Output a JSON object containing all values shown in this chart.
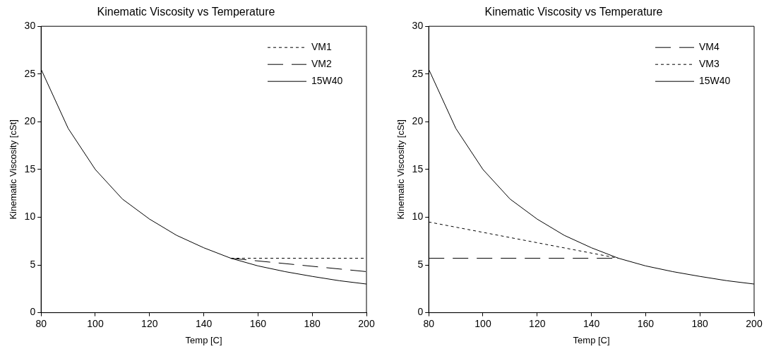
{
  "chart_data": [
    {
      "type": "line",
      "title": "Kinematic Viscosity vs Temperature",
      "xlabel": "Temp [C]",
      "ylabel": "Kinematic Viscosity [cSt]",
      "xlim": [
        80,
        200
      ],
      "xticks": [
        80,
        100,
        120,
        140,
        160,
        180,
        200
      ],
      "ylim": [
        0,
        30
      ],
      "yticks": [
        0,
        5,
        10,
        15,
        20,
        25,
        30
      ],
      "legend": "top right",
      "marker": "none",
      "series": [
        {
          "name": "VM1",
          "color": "#000000",
          "line_style": "dotted",
          "x": [
            150,
            200
          ],
          "values": [
            5.7,
            5.7
          ]
        },
        {
          "name": "VM2",
          "color": "#000000",
          "line_style": "dashed",
          "x": [
            150,
            200
          ],
          "values": [
            5.7,
            4.3
          ]
        },
        {
          "name": "15W40",
          "color": "#000000",
          "line_style": "solid",
          "x": [
            80,
            90,
            100,
            110,
            120,
            130,
            140,
            150,
            160,
            170,
            180,
            190,
            200
          ],
          "values": [
            25.5,
            19.3,
            15.0,
            11.9,
            9.8,
            8.1,
            6.8,
            5.7,
            4.9,
            4.3,
            3.8,
            3.35,
            3.0
          ]
        }
      ]
    },
    {
      "type": "line",
      "title": "Kinematic Viscosity vs Temperature",
      "xlabel": "Temp [C]",
      "ylabel": "Kinematic Viscosity [cSt]",
      "xlim": [
        80,
        200
      ],
      "xticks": [
        80,
        100,
        120,
        140,
        160,
        180,
        200
      ],
      "ylim": [
        0,
        30
      ],
      "yticks": [
        0,
        5,
        10,
        15,
        20,
        25,
        30
      ],
      "legend": "top right",
      "marker": "none",
      "series": [
        {
          "name": "VM4",
          "color": "#000000",
          "line_style": "dashed",
          "x": [
            80,
            150
          ],
          "values": [
            5.7,
            5.7
          ]
        },
        {
          "name": "VM3",
          "color": "#000000",
          "line_style": "dotted",
          "x": [
            80,
            150
          ],
          "values": [
            9.5,
            5.7
          ]
        },
        {
          "name": "15W40",
          "color": "#000000",
          "line_style": "solid",
          "x": [
            80,
            90,
            100,
            110,
            120,
            130,
            140,
            150,
            160,
            170,
            180,
            190,
            200
          ],
          "values": [
            25.5,
            19.3,
            15.0,
            11.9,
            9.8,
            8.1,
            6.8,
            5.7,
            4.9,
            4.3,
            3.8,
            3.35,
            3.0
          ]
        }
      ]
    }
  ]
}
